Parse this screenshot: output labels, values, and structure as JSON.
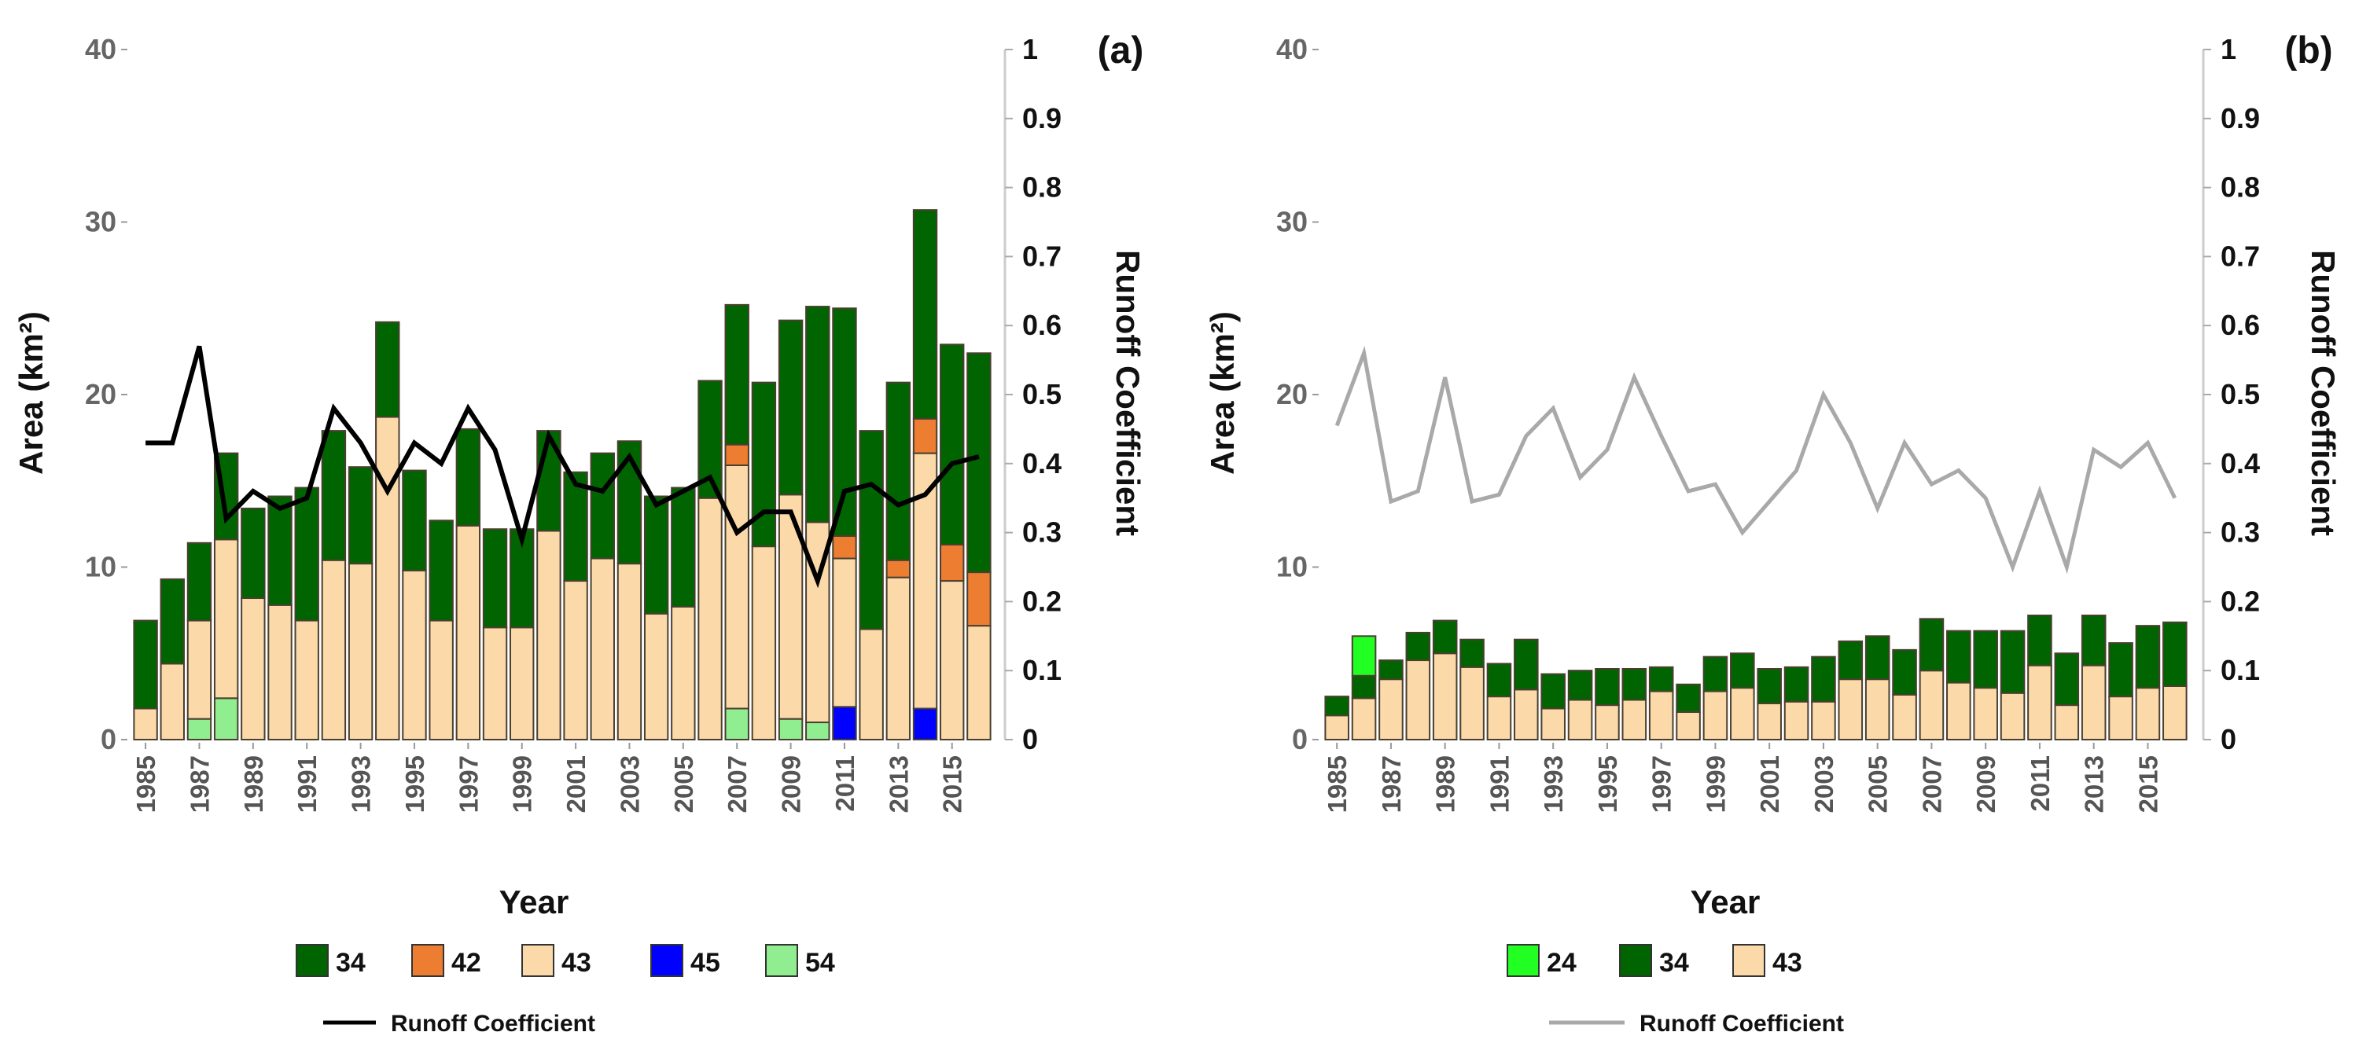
{
  "chart_data": [
    {
      "panel": "(a)",
      "type": "bar",
      "stacked": true,
      "xlabel": "Year",
      "ylabel": "Area (km²)",
      "y2label": "Runoff Coefficient",
      "ylim": [
        0,
        40
      ],
      "y2lim": [
        0,
        1
      ],
      "yticks": [
        "0",
        "10",
        "20",
        "30",
        "40"
      ],
      "y2ticks": [
        "0",
        "0.1",
        "0.2",
        "0.3",
        "0.4",
        "0.5",
        "0.6",
        "0.7",
        "0.8",
        "0.9",
        "1"
      ],
      "xtick_labels": [
        "1985",
        "1987",
        "1989",
        "1991",
        "1993",
        "1995",
        "1997",
        "1999",
        "2001",
        "2003",
        "2005",
        "2007",
        "2009",
        "2011",
        "2013",
        "2015"
      ],
      "categories": [
        1985,
        1986,
        1987,
        1988,
        1989,
        1990,
        1991,
        1992,
        1993,
        1994,
        1995,
        1996,
        1997,
        1998,
        1999,
        2000,
        2001,
        2002,
        2003,
        2004,
        2005,
        2006,
        2007,
        2008,
        2009,
        2010,
        2011,
        2012,
        2013,
        2014,
        2015,
        2016
      ],
      "series": [
        {
          "name": "54",
          "color": "#90EE90",
          "values": [
            0,
            0,
            1.2,
            2.4,
            0,
            0,
            0,
            0,
            0,
            0,
            0,
            0,
            0,
            0,
            0,
            0,
            0,
            0,
            0,
            0,
            0,
            0,
            1.8,
            0,
            1.2,
            1.0,
            0,
            0,
            0,
            0,
            0,
            0
          ]
        },
        {
          "name": "45",
          "color": "#0000FF",
          "values": [
            0,
            0,
            0,
            0,
            0,
            0,
            0,
            0,
            0,
            0,
            0,
            0,
            0,
            0,
            0,
            0,
            0,
            0,
            0,
            0,
            0,
            0,
            0,
            0,
            0,
            0,
            1.9,
            0,
            0,
            1.8,
            0,
            0
          ]
        },
        {
          "name": "43",
          "color": "#FBD9A8",
          "values": [
            1.8,
            4.4,
            5.7,
            9.2,
            8.2,
            7.8,
            6.9,
            10.4,
            10.2,
            18.7,
            9.8,
            6.9,
            12.4,
            6.5,
            6.5,
            12.1,
            9.2,
            10.5,
            10.2,
            7.3,
            7.7,
            14.0,
            14.1,
            11.2,
            13.0,
            11.6,
            8.6,
            6.4,
            9.4,
            14.8,
            9.2,
            6.6
          ]
        },
        {
          "name": "42",
          "color": "#ED7D31",
          "values": [
            0,
            0,
            0,
            0,
            0,
            0,
            0,
            0,
            0,
            0,
            0,
            0,
            0,
            0,
            0,
            0,
            0,
            0,
            0,
            0,
            0,
            0,
            1.2,
            0,
            0,
            0,
            1.3,
            0,
            1.0,
            2.0,
            2.1,
            3.1
          ]
        },
        {
          "name": "34",
          "color": "#006400",
          "values": [
            5.1,
            4.9,
            4.5,
            5.0,
            5.2,
            6.3,
            7.7,
            7.5,
            5.6,
            5.5,
            5.8,
            5.8,
            5.6,
            5.7,
            5.7,
            5.8,
            6.3,
            6.1,
            7.1,
            6.8,
            6.9,
            6.8,
            8.1,
            9.5,
            10.1,
            12.5,
            13.2,
            11.5,
            10.3,
            12.1,
            11.6,
            12.7
          ]
        }
      ],
      "legend_order": [
        "34",
        "42",
        "43",
        "45",
        "54"
      ],
      "line": {
        "name": "Runoff Coefficient",
        "color": "#000000",
        "axis": "right",
        "values": [
          0.43,
          0.43,
          0.57,
          0.32,
          0.36,
          0.335,
          0.35,
          0.48,
          0.43,
          0.36,
          0.43,
          0.4,
          0.48,
          0.42,
          0.29,
          0.44,
          0.37,
          0.36,
          0.41,
          0.34,
          0.36,
          0.38,
          0.3,
          0.33,
          0.33,
          0.23,
          0.36,
          0.37,
          0.34,
          0.355,
          0.4,
          0.41
        ]
      },
      "legend_placement": "bottom"
    },
    {
      "panel": "(b)",
      "type": "bar",
      "stacked": true,
      "xlabel": "Year",
      "ylabel": "Area (km²)",
      "y2label": "Runoff Coefficient",
      "ylim": [
        0,
        40
      ],
      "y2lim": [
        0,
        1
      ],
      "yticks": [
        "0",
        "10",
        "20",
        "30",
        "40"
      ],
      "y2ticks": [
        "0",
        "0.1",
        "0.2",
        "0.3",
        "0.4",
        "0.5",
        "0.6",
        "0.7",
        "0.8",
        "0.9",
        "1"
      ],
      "xtick_labels": [
        "1985",
        "1987",
        "1989",
        "1991",
        "1993",
        "1995",
        "1997",
        "1999",
        "2001",
        "2003",
        "2005",
        "2007",
        "2009",
        "2011",
        "2013",
        "2015"
      ],
      "categories": [
        1985,
        1986,
        1987,
        1988,
        1989,
        1990,
        1991,
        1992,
        1993,
        1994,
        1995,
        1996,
        1997,
        1998,
        1999,
        2000,
        2001,
        2002,
        2003,
        2004,
        2005,
        2006,
        2007,
        2008,
        2009,
        2010,
        2011,
        2012,
        2013,
        2014,
        2015,
        2016
      ],
      "series": [
        {
          "name": "43",
          "color": "#FBD9A8",
          "values": [
            1.4,
            2.4,
            3.5,
            4.6,
            5.0,
            4.2,
            2.5,
            2.9,
            1.8,
            2.3,
            2.0,
            2.3,
            2.8,
            1.6,
            2.8,
            3.0,
            2.1,
            2.2,
            2.2,
            3.5,
            3.5,
            2.6,
            4.0,
            3.3,
            3.0,
            2.7,
            4.3,
            2.0,
            4.3,
            2.5,
            3.0,
            3.1
          ]
        },
        {
          "name": "34",
          "color": "#006400",
          "values": [
            1.1,
            1.3,
            1.1,
            1.6,
            1.9,
            1.6,
            1.9,
            2.9,
            2.0,
            1.7,
            2.1,
            1.8,
            1.4,
            1.6,
            2.0,
            2.0,
            2.0,
            2.0,
            2.6,
            2.2,
            2.5,
            2.6,
            3.0,
            3.0,
            3.3,
            3.6,
            2.9,
            3.0,
            2.9,
            3.1,
            3.6,
            3.7
          ]
        },
        {
          "name": "24",
          "color": "#22FF22",
          "values": [
            0,
            2.3,
            0,
            0,
            0,
            0,
            0,
            0,
            0,
            0,
            0,
            0,
            0,
            0,
            0,
            0,
            0,
            0,
            0,
            0,
            0,
            0,
            0,
            0,
            0,
            0,
            0,
            0,
            0,
            0,
            0,
            0
          ]
        }
      ],
      "legend_order": [
        "24",
        "34",
        "43"
      ],
      "line": {
        "name": "Runoff Coefficient",
        "color": "#A9A9A9",
        "axis": "right",
        "values": [
          0.455,
          0.56,
          0.345,
          0.36,
          0.525,
          0.345,
          0.355,
          0.44,
          0.48,
          0.38,
          0.42,
          0.525,
          0.44,
          0.36,
          0.37,
          0.3,
          0.345,
          0.39,
          0.5,
          0.43,
          0.335,
          0.43,
          0.37,
          0.39,
          0.35,
          0.25,
          0.36,
          0.25,
          0.42,
          0.395,
          0.43,
          0.35
        ]
      },
      "legend_placement": "bottom"
    }
  ]
}
